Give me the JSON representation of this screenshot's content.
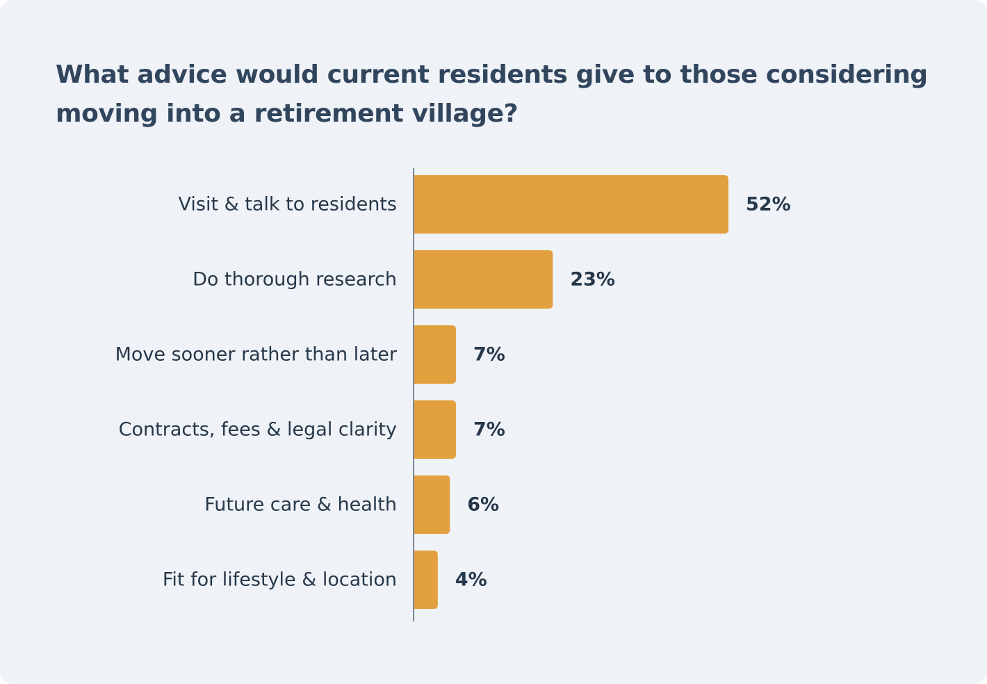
{
  "chart_data": {
    "type": "bar",
    "orientation": "horizontal",
    "title": "What advice would current residents give to those considering moving into a retirement village?",
    "categories": [
      "Visit & talk to residents",
      "Do thorough research",
      "Move sooner rather than later",
      "Contracts, fees & legal clarity",
      "Future care & health",
      "Fit for lifestyle & location"
    ],
    "values": [
      52,
      23,
      7,
      7,
      6,
      4
    ],
    "value_labels": [
      "52%",
      "23%",
      "7%",
      "7%",
      "6%",
      "4%"
    ],
    "unit": "%",
    "xlim": [
      0,
      52
    ],
    "grid": false,
    "legend": "none",
    "colors": {
      "bar": "#e2a03f",
      "axis": "#7b8794",
      "text": "#263849",
      "title": "#31465d",
      "background": "#eff2f7"
    }
  }
}
